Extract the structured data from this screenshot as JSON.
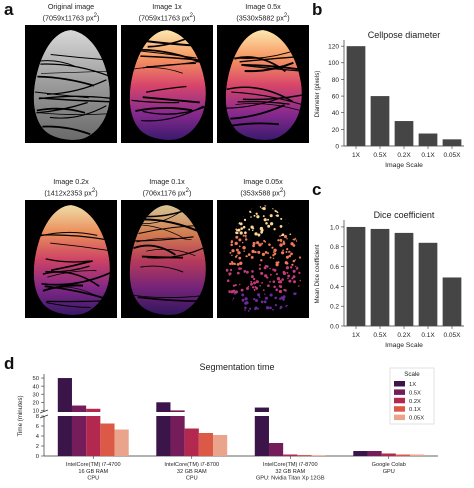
{
  "panels": {
    "a": "a",
    "b": "b",
    "c": "c",
    "d": "d"
  },
  "images": [
    {
      "line1": "Original image",
      "line2": "(7059x11763 px",
      "sup": "2",
      "close": ")",
      "style": "gray",
      "density": 1.0
    },
    {
      "line1": "Image 1x",
      "line2": "(7059x11763 px",
      "sup": "2",
      "close": ")",
      "style": "magma",
      "density": 1.0
    },
    {
      "line1": "Image 0.5x",
      "line2": "(3530x5882 px",
      "sup": "2",
      "close": ")",
      "style": "magma",
      "density": 1.0
    },
    {
      "line1": "Image 0.2x",
      "line2": "(1412x2353 px",
      "sup": "2",
      "close": ")",
      "style": "magma",
      "density": 0.95
    },
    {
      "line1": "Image 0.1x",
      "line2": "(706x1176 px",
      "sup": "2",
      "close": ")",
      "style": "magma",
      "density": 0.85
    },
    {
      "line1": "Image 0.05x",
      "line2": "(353x588 px",
      "sup": "2",
      "close": ")",
      "style": "magma",
      "density": 0.45
    }
  ],
  "chart_data": [
    {
      "id": "b",
      "type": "bar",
      "title": "Cellpose diameter",
      "xlabel": "Image Scale",
      "ylabel": "Diameter (pixels)",
      "categories": [
        "1X",
        "0.5X",
        "0.2X",
        "0.1X",
        "0.05X"
      ],
      "values": [
        120,
        60,
        30,
        15,
        8
      ],
      "ylim": [
        0,
        125
      ],
      "yticks": [
        0,
        20,
        40,
        60,
        80,
        100,
        120
      ],
      "color": "#454545"
    },
    {
      "id": "c",
      "type": "bar",
      "title": "Dice coefficient",
      "xlabel": "Image Scale",
      "ylabel": "Mean Dice coefficient",
      "categories": [
        "1X",
        "0.5X",
        "0.2X",
        "0.1X",
        "0.05X"
      ],
      "values": [
        1.0,
        0.98,
        0.94,
        0.84,
        0.49
      ],
      "ylim": [
        0,
        1.05
      ],
      "yticks": [
        "0.0",
        "0.2",
        "0.4",
        "0.6",
        "0.8",
        "1.0"
      ],
      "color": "#454545"
    },
    {
      "id": "d",
      "type": "bar",
      "title": "Segmentation time",
      "ylabel": "Time (minutes)",
      "axis_break": true,
      "upper_ylim": [
        8,
        55
      ],
      "upper_yticks": [
        10,
        20,
        30,
        40,
        50
      ],
      "lower_ylim": [
        0,
        8
      ],
      "lower_yticks": [
        0,
        2,
        4,
        6,
        8
      ],
      "categories": [
        [
          "IntelCore(TM) i7-4700",
          "16 GB RAM",
          "CPU"
        ],
        [
          "IntelCore(TM) i7-8700",
          "32 GB RAM",
          "CPU"
        ],
        [
          "IntelCore(TM) i7-8700",
          "32 GB RAM",
          "GPU: Nvidia Titan Xp 12GB"
        ],
        [
          "Google Colab",
          "GPU"
        ]
      ],
      "legend_title": "Scale",
      "legend_position": "right",
      "series": [
        {
          "name": "1X",
          "color": "#3b1449",
          "values": [
            50,
            20,
            13.5,
            1.0
          ]
        },
        {
          "name": "0.5X",
          "color": "#741d5a",
          "values": [
            16,
            10,
            2.6,
            1.0
          ]
        },
        {
          "name": "0.2X",
          "color": "#b3284e",
          "values": [
            12,
            5.5,
            0.3,
            0.5
          ]
        },
        {
          "name": "0.1X",
          "color": "#dc5847",
          "values": [
            6.5,
            4.6,
            0.2,
            0.3
          ]
        },
        {
          "name": "0.05X",
          "color": "#eba48c",
          "values": [
            5.3,
            4.2,
            0.15,
            0.3
          ]
        }
      ]
    }
  ]
}
